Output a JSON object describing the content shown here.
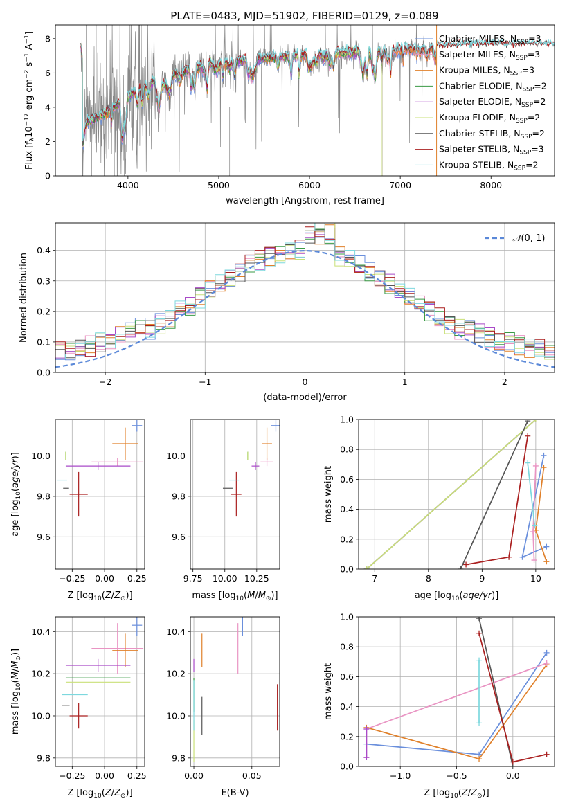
{
  "figure": {
    "title": "PLATE=0483, MJD=51902, FIBERID=0129, z=0.089"
  },
  "colors": {
    "chabrier_miles": "#6a8fdc",
    "salpeter_miles": "#e994c3",
    "kroupa_miles": "#e0802a",
    "chabrier_elodie": "#3a9a45",
    "salpeter_elodie": "#a94ac8",
    "kroupa_elodie": "#c9e078",
    "chabrier_stelib": "#555555",
    "salpeter_stelib": "#aa1f1f",
    "kroupa_stelib": "#7dd8de",
    "data": "#888888",
    "gauss": "#5a88d8",
    "grid": "#b0b0b0"
  },
  "chart_data": [
    {
      "id": "spectrum",
      "type": "line",
      "xlabel": "wavelength [Angstrom, rest frame]",
      "ylabel": "Flux [f",
      "xlim": [
        3200,
        8700
      ],
      "ylim": [
        0,
        8.8
      ],
      "xticks": [
        "4000",
        "5000",
        "6000",
        "7000",
        "8000"
      ],
      "yticks": [
        "0",
        "2",
        "4",
        "6",
        "8"
      ],
      "legend_position": "right",
      "legend": [
        {
          "imf": "Chabrier",
          "lib": "MILES",
          "n": "3"
        },
        {
          "imf": "Salpeter",
          "lib": "MILES",
          "n": "3"
        },
        {
          "imf": "Kroupa",
          "lib": "MILES",
          "n": "3"
        },
        {
          "imf": "Chabrier",
          "lib": "ELODIE",
          "n": "2"
        },
        {
          "imf": "Salpeter",
          "lib": "ELODIE",
          "n": "2"
        },
        {
          "imf": "Kroupa",
          "lib": "ELODIE",
          "n": "2"
        },
        {
          "imf": "Chabrier",
          "lib": "STELIB",
          "n": "2"
        },
        {
          "imf": "Salpeter",
          "lib": "STELIB",
          "n": "3"
        },
        {
          "imf": "Kroupa",
          "lib": "STELIB",
          "n": "2"
        }
      ],
      "continuum": [
        [
          3500,
          3.0
        ],
        [
          3700,
          3.5
        ],
        [
          3900,
          4.2
        ],
        [
          4100,
          5.0
        ],
        [
          4300,
          5.6
        ],
        [
          4600,
          6.1
        ],
        [
          5000,
          6.6
        ],
        [
          5400,
          6.8
        ],
        [
          5800,
          7.0
        ],
        [
          6200,
          7.1
        ],
        [
          6600,
          7.2
        ],
        [
          7000,
          7.35
        ],
        [
          7400,
          7.5
        ],
        [
          7800,
          7.6
        ],
        [
          8200,
          7.6
        ],
        [
          8700,
          7.6
        ]
      ]
    },
    {
      "id": "residuals",
      "type": "bar",
      "xlabel": "(data-model)/error",
      "ylabel": "Normed distribution",
      "xlim": [
        -2.5,
        2.5
      ],
      "ylim": [
        0,
        0.49
      ],
      "xticks": [
        "−2",
        "−1",
        "0",
        "1",
        "2"
      ],
      "yticks": [
        "0.0",
        "0.1",
        "0.2",
        "0.3",
        "0.4"
      ],
      "gauss_label": "N(0, 1)",
      "bin_width": 0.1
    },
    {
      "id": "age-vs-Z",
      "type": "scatter",
      "xlabel": "Z [log10(Z/Z⊙)]",
      "ylabel": "age [log10(age/yr)]",
      "xlim": [
        -0.38,
        0.31
      ],
      "ylim": [
        9.44,
        10.18
      ],
      "xticks": [
        "−0.25",
        "0.00",
        "0.25"
      ],
      "yticks": [
        "9.6",
        "9.8",
        "10.0"
      ],
      "points": [
        {
          "c": "chabrier_miles",
          "x": 0.25,
          "xerr": 0.04,
          "y": 10.15,
          "yerr": 0.03
        },
        {
          "c": "salpeter_miles",
          "x": 0.1,
          "xerr": 0.2,
          "y": 9.97,
          "yerr": 0.02
        },
        {
          "c": "kroupa_miles",
          "x": 0.16,
          "xerr": 0.1,
          "y": 10.06,
          "yerr": 0.08
        },
        {
          "c": "chabrier_elodie",
          "x": -0.3,
          "xerr": 0.0,
          "y": 10.0,
          "yerr": 0.02
        },
        {
          "c": "salpeter_elodie",
          "x": -0.05,
          "xerr": 0.25,
          "y": 9.95,
          "yerr": 0.02
        },
        {
          "c": "kroupa_elodie",
          "x": -0.3,
          "xerr": 0.0,
          "y": 10.0,
          "yerr": 0.02
        },
        {
          "c": "chabrier_stelib",
          "x": -0.3,
          "xerr": 0.02,
          "y": 9.84,
          "yerr": 0.0
        },
        {
          "c": "salpeter_stelib",
          "x": -0.2,
          "xerr": 0.07,
          "y": 9.81,
          "yerr": 0.11
        },
        {
          "c": "kroupa_stelib",
          "x": -0.3,
          "xerr": 0.0,
          "y": 9.88,
          "yerr": 0.0
        }
      ]
    },
    {
      "id": "age-vs-mass",
      "type": "scatter",
      "xlabel": "mass [log10(M/M⊙)]",
      "ylabel": "",
      "xlim": [
        9.73,
        10.43
      ],
      "ylim": [
        9.44,
        10.18
      ],
      "xticks": [
        "9.75",
        "10.00",
        "10.25"
      ],
      "yticks": [
        "9.6",
        "9.8",
        "10.0"
      ],
      "points": [
        {
          "c": "chabrier_miles",
          "x": 10.4,
          "xerr": 0.04,
          "y": 10.15,
          "yerr": 0.03
        },
        {
          "c": "salpeter_miles",
          "x": 10.33,
          "xerr": 0.05,
          "y": 9.97,
          "yerr": 0.02
        },
        {
          "c": "kroupa_miles",
          "x": 10.33,
          "xerr": 0.04,
          "y": 10.06,
          "yerr": 0.08
        },
        {
          "c": "chabrier_elodie",
          "x": 10.18,
          "xerr": 0.0,
          "y": 10.0,
          "yerr": 0.02
        },
        {
          "c": "salpeter_elodie",
          "x": 10.24,
          "xerr": 0.03,
          "y": 9.95,
          "yerr": 0.02
        },
        {
          "c": "kroupa_elodie",
          "x": 10.18,
          "xerr": 0.0,
          "y": 10.0,
          "yerr": 0.02
        },
        {
          "c": "chabrier_stelib",
          "x": 10.05,
          "xerr": 0.0,
          "y": 9.84,
          "yerr": 0.0
        },
        {
          "c": "salpeter_stelib",
          "x": 10.09,
          "xerr": 0.04,
          "y": 9.81,
          "yerr": 0.11
        },
        {
          "c": "kroupa_stelib",
          "x": 10.1,
          "xerr": 0.0,
          "y": 9.88,
          "yerr": 0.0
        }
      ]
    },
    {
      "id": "weight-vs-age",
      "type": "line",
      "xlabel": "age [log10(age/yr)]",
      "ylabel": "mass weight",
      "xlim": [
        6.7,
        10.35
      ],
      "ylim": [
        0,
        1.0
      ],
      "xticks": [
        "7",
        "8",
        "9",
        "10"
      ],
      "yticks": [
        "0.0",
        "0.2",
        "0.4",
        "0.6",
        "0.8",
        "1.0"
      ],
      "series": [
        {
          "c": "chabrier_miles",
          "points": [
            [
              10.15,
              0.76
            ],
            [
              9.75,
              0.08
            ],
            [
              10.2,
              0.15
            ]
          ]
        },
        {
          "c": "kroupa_miles",
          "points": [
            [
              10.15,
              0.68
            ],
            [
              10.0,
              0.26
            ],
            [
              10.2,
              0.05
            ]
          ]
        },
        {
          "c": "salpeter_miles",
          "points": [
            [
              10.0,
              0.69
            ],
            [
              9.95,
              0.25
            ],
            [
              9.97,
              0.06
            ]
          ]
        },
        {
          "c": "chabrier_elodie",
          "points": [
            [
              6.85,
              0.0
            ],
            [
              10.0,
              1.0
            ]
          ]
        },
        {
          "c": "salpeter_elodie",
          "points": [
            [
              6.85,
              0.0
            ],
            [
              10.0,
              1.0
            ]
          ]
        },
        {
          "c": "kroupa_elodie",
          "points": [
            [
              6.85,
              0.0
            ],
            [
              10.0,
              1.0
            ]
          ]
        },
        {
          "c": "chabrier_stelib",
          "points": [
            [
              8.6,
              0.0
            ],
            [
              9.85,
              0.99
            ]
          ]
        },
        {
          "c": "salpeter_stelib",
          "points": [
            [
              8.7,
              0.03
            ],
            [
              9.5,
              0.08
            ],
            [
              9.85,
              0.89
            ]
          ]
        },
        {
          "c": "kroupa_stelib",
          "points": [
            [
              9.85,
              0.71
            ],
            [
              9.98,
              0.29
            ]
          ]
        }
      ]
    },
    {
      "id": "mass-vs-Z",
      "type": "scatter",
      "xlabel": "Z [log10(Z/Z⊙)]",
      "ylabel": "mass [log10(M/M⊙)]",
      "xlim": [
        -0.38,
        0.31
      ],
      "ylim": [
        9.76,
        10.47
      ],
      "xticks": [
        "−0.25",
        "0.00",
        "0.25"
      ],
      "yticks": [
        "9.8",
        "10.0",
        "10.2",
        "10.4"
      ],
      "points": [
        {
          "c": "chabrier_miles",
          "x": 0.25,
          "xerr": 0.04,
          "y": 10.43,
          "yerr": 0.05
        },
        {
          "c": "salpeter_miles",
          "x": 0.1,
          "xerr": 0.2,
          "y": 10.32,
          "yerr": 0.12
        },
        {
          "c": "kroupa_miles",
          "x": 0.16,
          "xerr": 0.1,
          "y": 10.31,
          "yerr": 0.08
        },
        {
          "c": "chabrier_elodie",
          "x": -0.05,
          "xerr": 0.25,
          "y": 10.18,
          "yerr": 0.0
        },
        {
          "c": "salpeter_elodie",
          "x": -0.05,
          "xerr": 0.25,
          "y": 10.24,
          "yerr": 0.03
        },
        {
          "c": "kroupa_elodie",
          "x": -0.05,
          "xerr": 0.25,
          "y": 10.16,
          "yerr": 0.0
        },
        {
          "c": "chabrier_stelib",
          "x": -0.3,
          "xerr": 0.03,
          "y": 10.05,
          "yerr": 0.0
        },
        {
          "c": "salpeter_stelib",
          "x": -0.2,
          "xerr": 0.07,
          "y": 10.0,
          "yerr": 0.06
        },
        {
          "c": "kroupa_stelib",
          "x": -0.23,
          "xerr": 0.1,
          "y": 10.1,
          "yerr": 0.0
        }
      ]
    },
    {
      "id": "mass-vs-EBV",
      "type": "scatter",
      "xlabel": "E(B-V)",
      "ylabel": "",
      "xlim": [
        -0.003,
        0.074
      ],
      "ylim": [
        9.76,
        10.47
      ],
      "xticks": [
        "0.00",
        "0.05"
      ],
      "yticks": [
        "9.8",
        "10.0",
        "10.2",
        "10.4"
      ],
      "points": [
        {
          "c": "chabrier_miles",
          "x": 0.042,
          "xerr": 0.0,
          "y": 10.43,
          "yerr": 0.05
        },
        {
          "c": "salpeter_miles",
          "x": 0.038,
          "xerr": 0.0,
          "y": 10.32,
          "yerr": 0.12
        },
        {
          "c": "kroupa_miles",
          "x": 0.007,
          "xerr": 0.0,
          "y": 10.31,
          "yerr": 0.08
        },
        {
          "c": "chabrier_elodie",
          "x": 0.0,
          "xerr": 0.0,
          "y": 10.1,
          "yerr": 0.08
        },
        {
          "c": "salpeter_elodie",
          "x": 0.0,
          "xerr": 0.0,
          "y": 10.24,
          "yerr": 0.03
        },
        {
          "c": "kroupa_elodie",
          "x": 0.0,
          "xerr": 0.0,
          "y": 9.88,
          "yerr": 0.1
        },
        {
          "c": "chabrier_stelib",
          "x": 0.007,
          "xerr": 0.0,
          "y": 10.0,
          "yerr": 0.09
        },
        {
          "c": "salpeter_stelib",
          "x": 0.072,
          "xerr": 0.0,
          "y": 10.04,
          "yerr": 0.11
        },
        {
          "c": "kroupa_stelib",
          "x": 0.0,
          "xerr": 0.0,
          "y": 10.05,
          "yerr": 0.12
        }
      ]
    },
    {
      "id": "weight-vs-Z",
      "type": "line",
      "xlabel": "Z [log10(Z/Z⊙)]",
      "ylabel": "mass weight",
      "xlim": [
        -1.37,
        0.37
      ],
      "ylim": [
        0,
        1.0
      ],
      "xticks": [
        "−1.0",
        "−0.5",
        "0.0"
      ],
      "yticks": [
        "0.0",
        "0.2",
        "0.4",
        "0.6",
        "0.8",
        "1.0"
      ],
      "series": [
        {
          "c": "chabrier_miles",
          "points": [
            [
              -1.3,
              0.15
            ],
            [
              -0.3,
              0.08
            ],
            [
              0.3,
              0.76
            ]
          ]
        },
        {
          "c": "kroupa_miles",
          "points": [
            [
              -1.3,
              0.26
            ],
            [
              -0.3,
              0.05
            ],
            [
              0.3,
              0.68
            ]
          ]
        },
        {
          "c": "salpeter_miles",
          "points": [
            [
              -1.3,
              0.06
            ],
            [
              -1.3,
              0.25
            ],
            [
              0.3,
              0.69
            ]
          ]
        },
        {
          "c": "salpeter_elodie",
          "points": [
            [
              -1.3,
              0.06
            ],
            [
              -1.3,
              0.25
            ]
          ]
        },
        {
          "c": "chabrier_stelib",
          "points": [
            [
              -0.3,
              0.99
            ],
            [
              0.0,
              0.0
            ]
          ]
        },
        {
          "c": "salpeter_stelib",
          "points": [
            [
              -0.3,
              0.89
            ],
            [
              0.0,
              0.03
            ],
            [
              0.3,
              0.08
            ]
          ]
        },
        {
          "c": "kroupa_stelib",
          "points": [
            [
              -0.3,
              0.71
            ],
            [
              -0.3,
              0.29
            ]
          ]
        }
      ]
    }
  ]
}
